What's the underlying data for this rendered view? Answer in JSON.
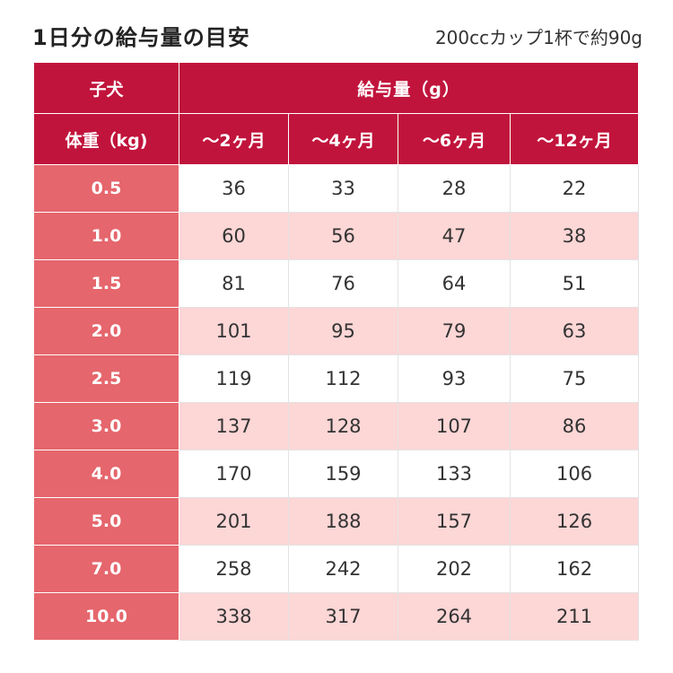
{
  "header": {
    "title": "1日分の給与量の目安",
    "note": "200ccカップ1杯で約90g"
  },
  "table": {
    "group_label": "子犬",
    "weight_label": "体重（kg)",
    "amount_label": "給与量（g）",
    "age_columns": [
      "～2ヶ月",
      "～4ヶ月",
      "～6ヶ月",
      "～12ヶ月"
    ],
    "rows": [
      {
        "weight": "0.5",
        "values": [
          "36",
          "33",
          "28",
          "22"
        ]
      },
      {
        "weight": "1.0",
        "values": [
          "60",
          "56",
          "47",
          "38"
        ]
      },
      {
        "weight": "1.5",
        "values": [
          "81",
          "76",
          "64",
          "51"
        ]
      },
      {
        "weight": "2.0",
        "values": [
          "101",
          "95",
          "79",
          "63"
        ]
      },
      {
        "weight": "2.5",
        "values": [
          "119",
          "112",
          "93",
          "75"
        ]
      },
      {
        "weight": "3.0",
        "values": [
          "137",
          "128",
          "107",
          "86"
        ]
      },
      {
        "weight": "4.0",
        "values": [
          "170",
          "159",
          "133",
          "106"
        ]
      },
      {
        "weight": "5.0",
        "values": [
          "201",
          "188",
          "157",
          "126"
        ]
      },
      {
        "weight": "7.0",
        "values": [
          "258",
          "242",
          "202",
          "162"
        ]
      },
      {
        "weight": "10.0",
        "values": [
          "338",
          "317",
          "264",
          "211"
        ]
      }
    ]
  },
  "colors": {
    "header_bg": "#c1143c",
    "weight_cell_bg": "#e5666c",
    "alt_row_bg": "#fdd6d6"
  }
}
